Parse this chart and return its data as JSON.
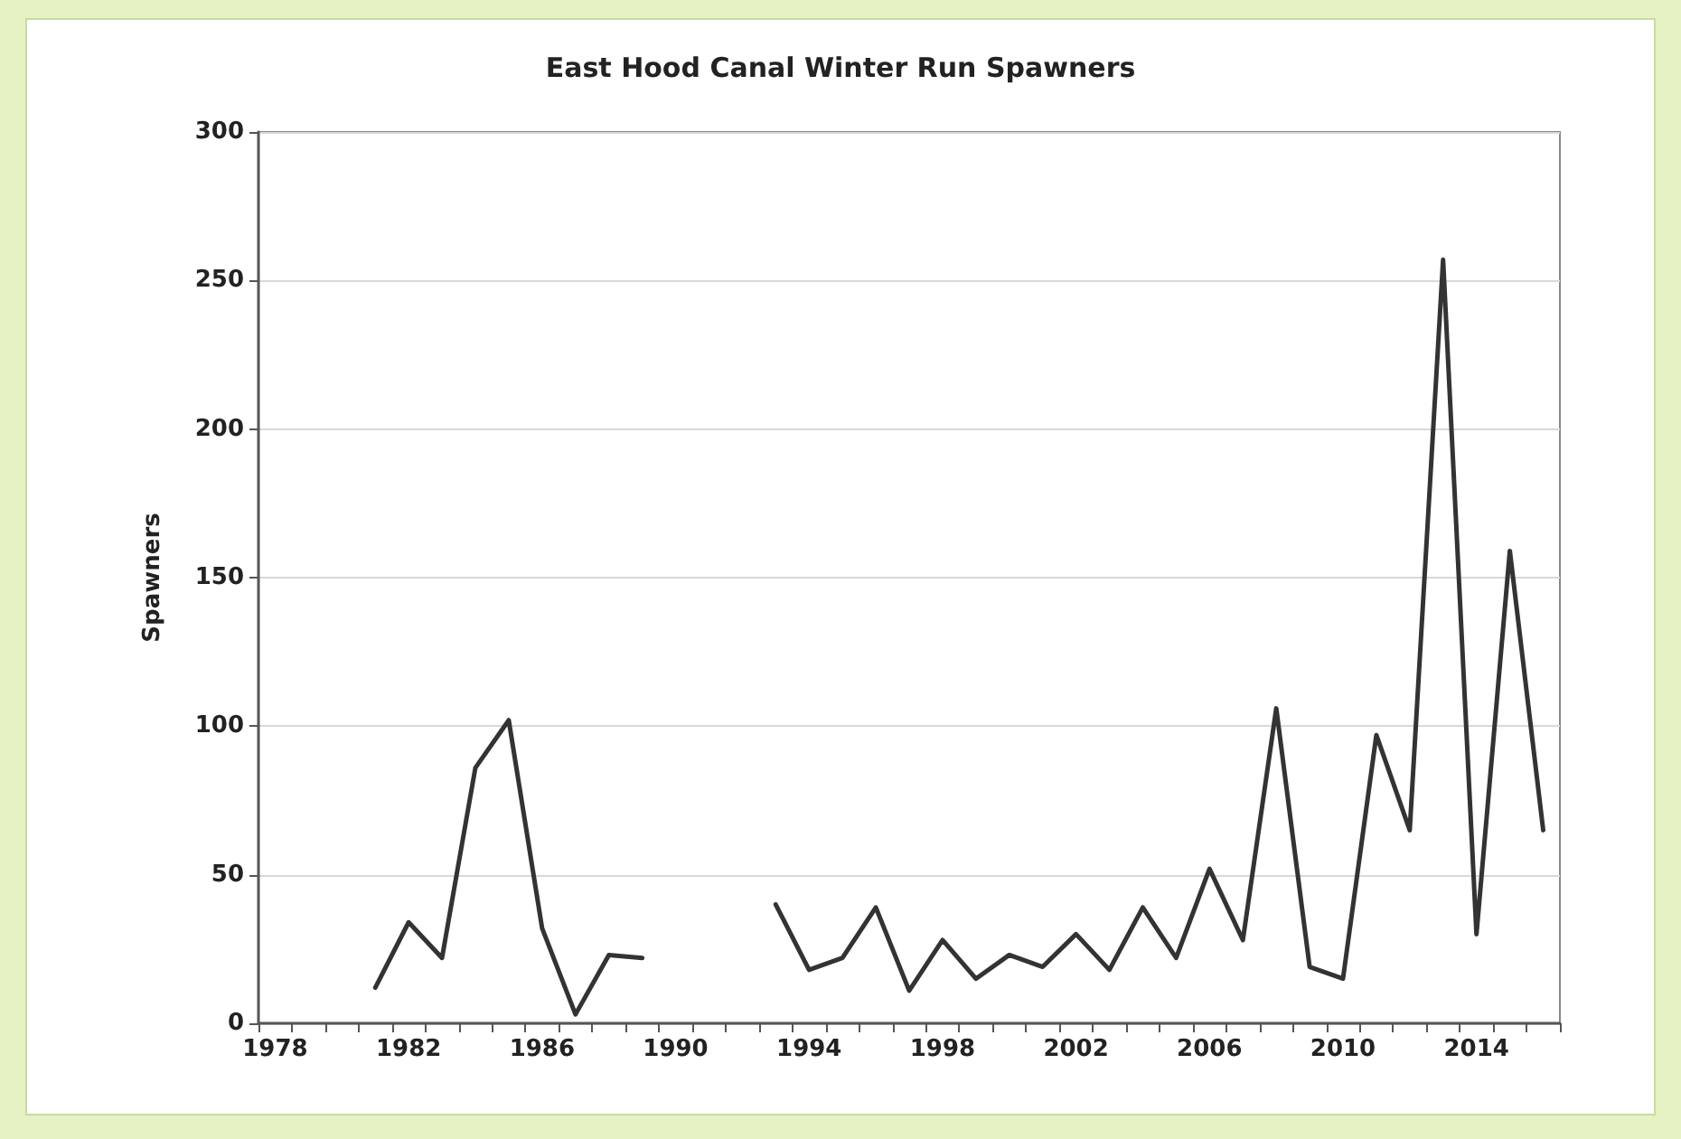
{
  "chart_data": {
    "type": "line",
    "title": "East Hood Canal Winter Run Spawners",
    "ylabel": "Spawners",
    "categories": [
      "1978",
      null,
      null,
      null,
      "1982",
      null,
      null,
      null,
      "1986",
      null,
      null,
      null,
      "1990",
      null,
      null,
      null,
      "1994",
      null,
      null,
      null,
      "1998",
      null,
      null,
      null,
      "2002",
      null,
      null,
      null,
      "2006",
      null,
      null,
      null,
      "2010",
      null,
      null,
      null,
      "2014",
      null,
      null
    ],
    "series": [
      {
        "color": "#333333",
        "values": [
          null,
          null,
          null,
          12,
          34,
          22,
          86,
          102,
          32,
          3,
          23,
          22,
          null,
          null,
          null,
          40,
          18,
          22,
          39,
          11,
          28,
          15,
          23,
          19,
          30,
          18,
          39,
          22,
          52,
          28,
          106,
          19,
          15,
          97,
          65,
          257,
          30,
          159,
          65
        ]
      }
    ],
    "ylim": [
      0,
      300
    ],
    "yticks": [
      0,
      50,
      100,
      150,
      200,
      250,
      300
    ],
    "grid": "y",
    "marker": "none",
    "line_style": "solid"
  }
}
